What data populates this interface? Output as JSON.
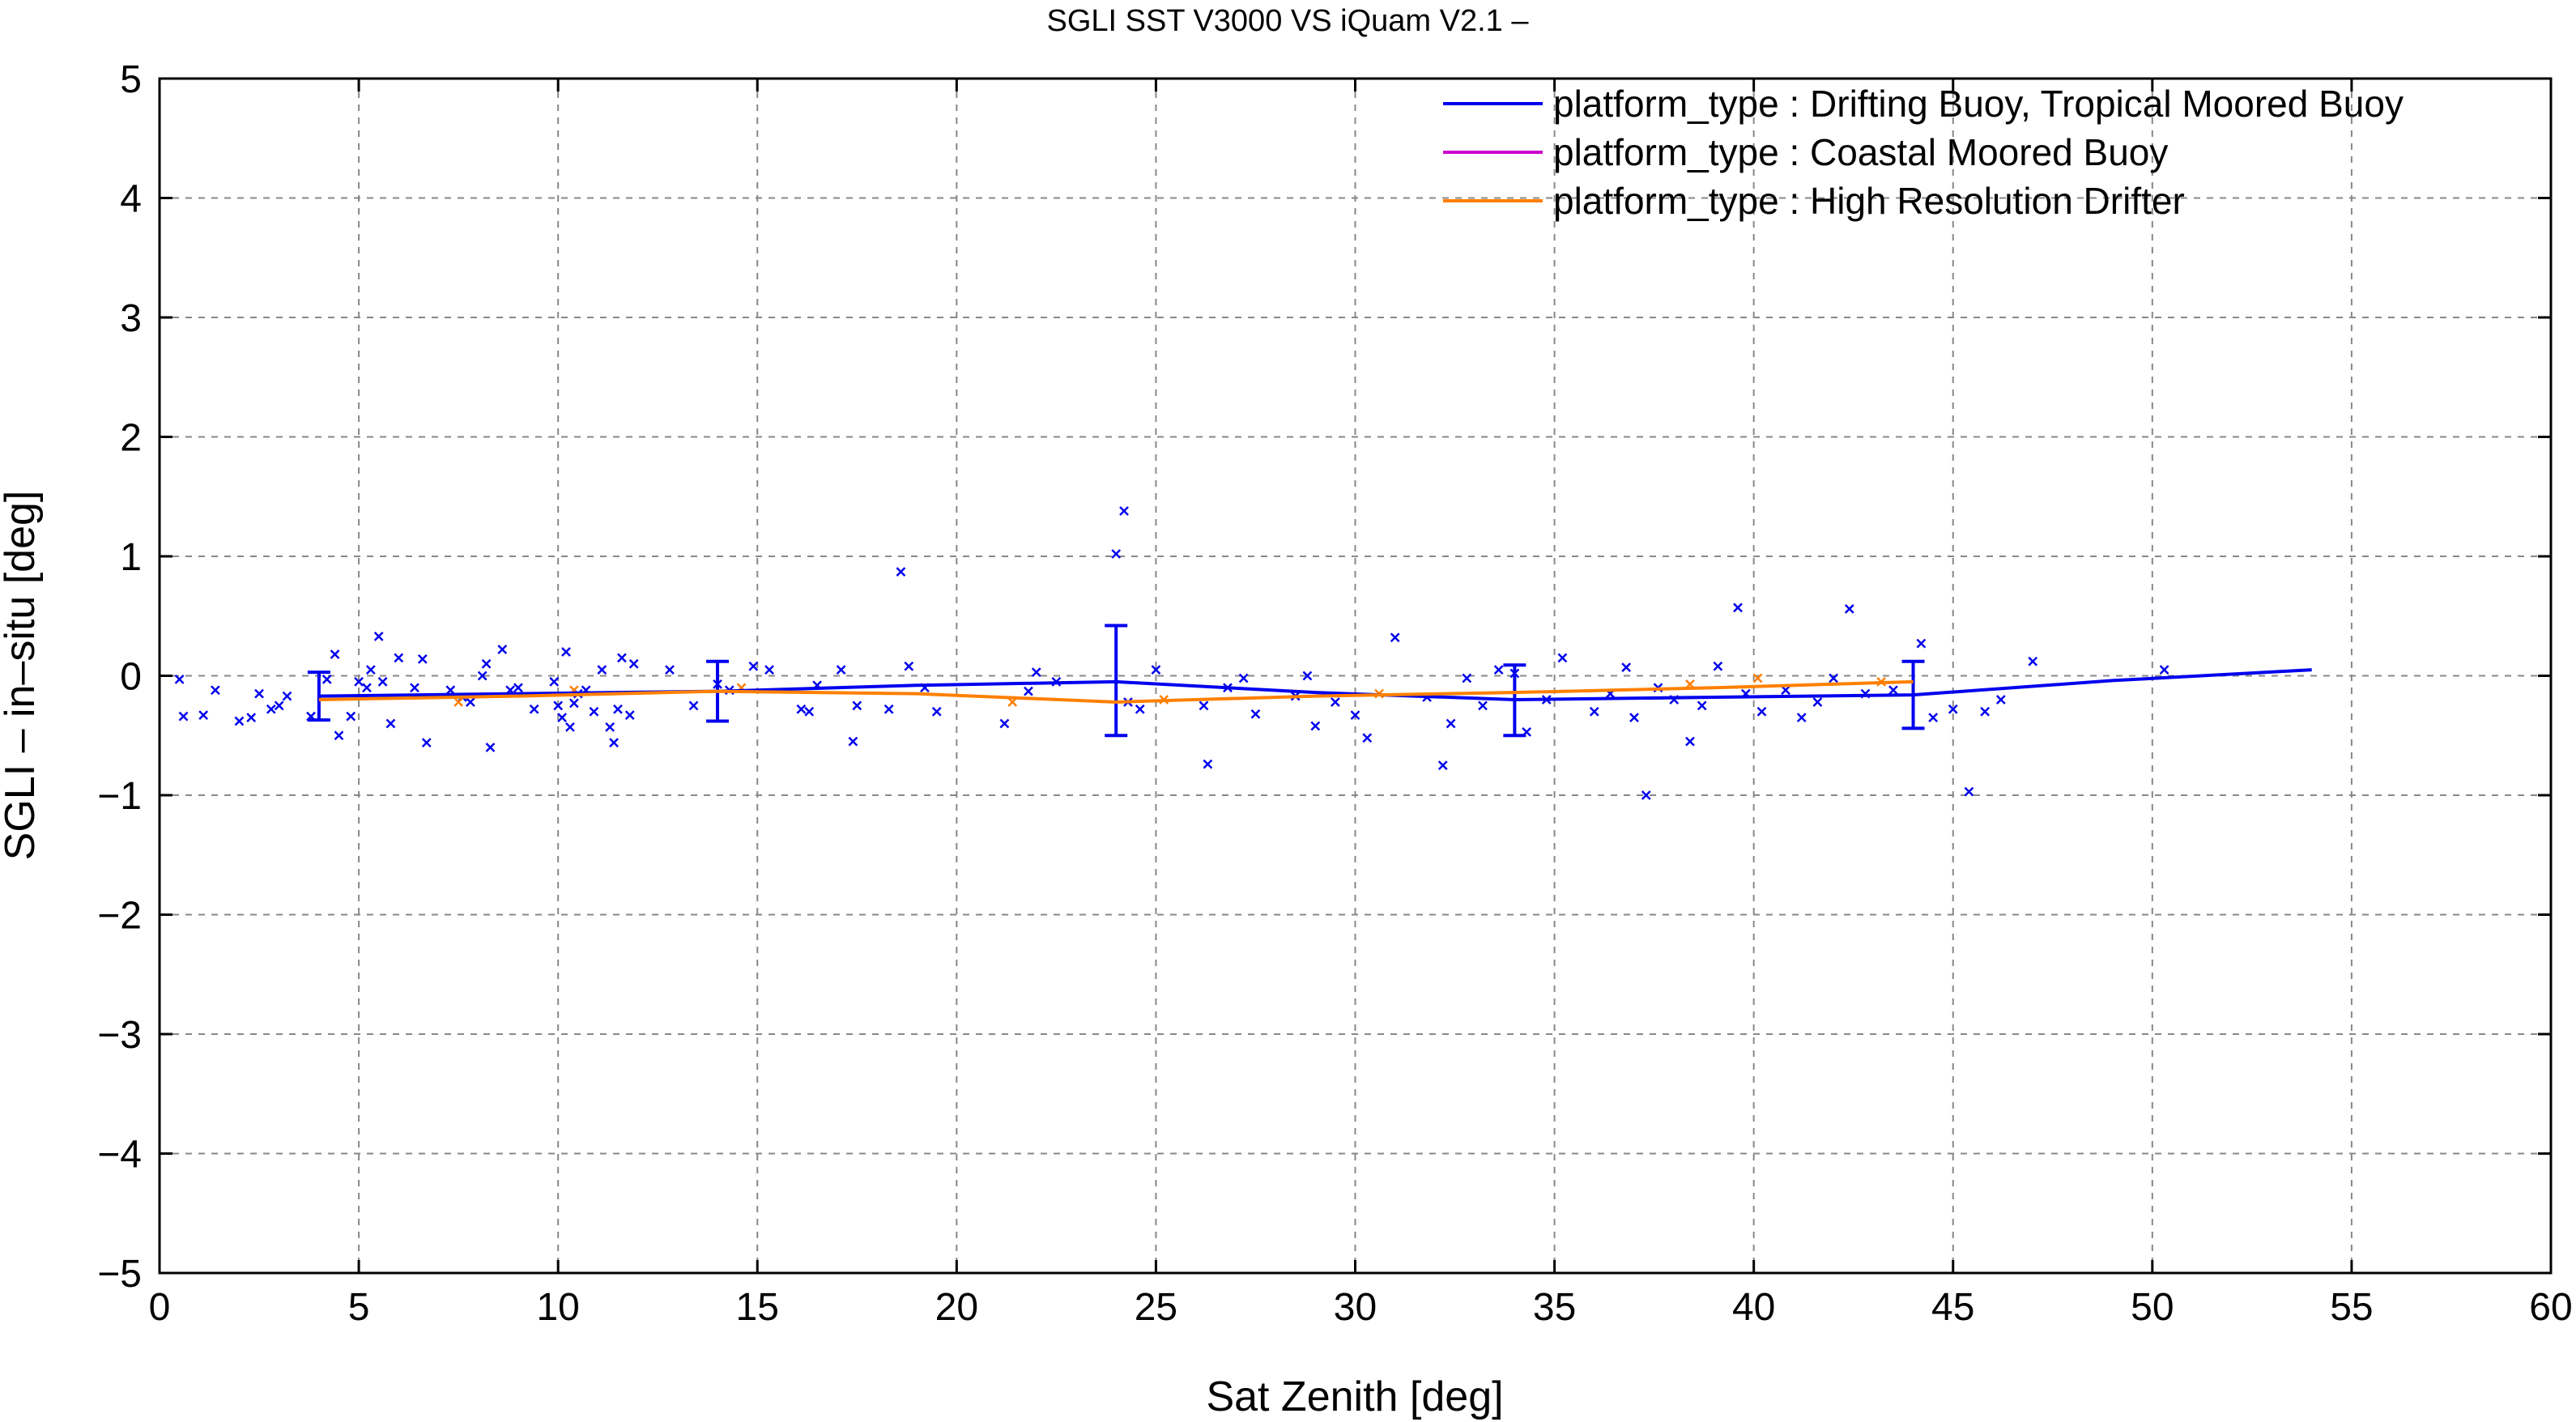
{
  "chart_data": {
    "type": "line",
    "title": "SGLI SST V3000 VS iQuam V2.1  –",
    "xlabel": "Sat Zenith [deg]",
    "ylabel": "SGLI – in–situ [deg]",
    "xlim": [
      0,
      60
    ],
    "ylim": [
      -5,
      5
    ],
    "xticks": [
      0,
      5,
      10,
      15,
      20,
      25,
      30,
      35,
      40,
      45,
      50,
      55,
      60
    ],
    "yticks": [
      -5,
      -4,
      -3,
      -2,
      -1,
      0,
      1,
      2,
      3,
      4,
      5
    ],
    "ytick_labels": [
      "−5",
      "−4",
      "−3",
      "−2",
      "−1",
      "0",
      "1",
      "2",
      "3",
      "4",
      "5"
    ],
    "grid": true,
    "legend_position": "top-right",
    "series": [
      {
        "name": "platform_type : Drifting Buoy, Tropical Moored Buoy",
        "color": "#0000ee",
        "x": [
          4,
          9,
          14,
          19,
          24,
          29,
          34,
          39,
          44,
          49,
          54
        ],
        "y": [
          -0.17,
          -0.15,
          -0.13,
          -0.08,
          -0.05,
          -0.14,
          -0.2,
          -0.18,
          -0.16,
          -0.04,
          0.05
        ],
        "error_bars": [
          {
            "x": 4,
            "low": -0.37,
            "high": 0.03
          },
          {
            "x": 14,
            "low": -0.38,
            "high": 0.12
          },
          {
            "x": 24,
            "low": -0.5,
            "high": 0.42
          },
          {
            "x": 34,
            "low": -0.5,
            "high": 0.09
          },
          {
            "x": 44,
            "low": -0.44,
            "high": 0.12
          }
        ],
        "scatter": [
          [
            0.5,
            -0.03
          ],
          [
            0.6,
            -0.34
          ],
          [
            1.1,
            -0.33
          ],
          [
            1.4,
            -0.12
          ],
          [
            2.0,
            -0.38
          ],
          [
            2.3,
            -0.35
          ],
          [
            2.5,
            -0.15
          ],
          [
            2.8,
            -0.28
          ],
          [
            3.0,
            -0.25
          ],
          [
            3.2,
            -0.17
          ],
          [
            3.8,
            -0.34
          ],
          [
            4.2,
            -0.03
          ],
          [
            4.4,
            0.18
          ],
          [
            4.5,
            -0.5
          ],
          [
            4.8,
            -0.34
          ],
          [
            5.0,
            -0.05
          ],
          [
            5.2,
            -0.1
          ],
          [
            5.3,
            0.05
          ],
          [
            5.5,
            0.33
          ],
          [
            5.6,
            -0.05
          ],
          [
            5.8,
            -0.4
          ],
          [
            6.0,
            0.15
          ],
          [
            6.4,
            -0.1
          ],
          [
            6.6,
            0.14
          ],
          [
            6.7,
            -0.56
          ],
          [
            7.3,
            -0.12
          ],
          [
            7.6,
            -0.18
          ],
          [
            7.8,
            -0.22
          ],
          [
            8.1,
            0.0
          ],
          [
            8.2,
            0.1
          ],
          [
            8.3,
            -0.6
          ],
          [
            8.6,
            0.22
          ],
          [
            8.8,
            -0.12
          ],
          [
            9.0,
            -0.1
          ],
          [
            9.4,
            -0.28
          ],
          [
            9.9,
            -0.05
          ],
          [
            10.0,
            -0.25
          ],
          [
            10.1,
            -0.35
          ],
          [
            10.2,
            0.2
          ],
          [
            10.3,
            -0.43
          ],
          [
            10.4,
            -0.23
          ],
          [
            10.5,
            -0.15
          ],
          [
            10.7,
            -0.12
          ],
          [
            10.9,
            -0.3
          ],
          [
            11.1,
            0.05
          ],
          [
            11.3,
            -0.43
          ],
          [
            11.4,
            -0.56
          ],
          [
            11.5,
            -0.28
          ],
          [
            11.6,
            0.15
          ],
          [
            11.8,
            -0.33
          ],
          [
            11.9,
            0.1
          ],
          [
            12.8,
            0.05
          ],
          [
            13.4,
            -0.25
          ],
          [
            14.0,
            -0.07
          ],
          [
            14.3,
            -0.12
          ],
          [
            14.9,
            0.08
          ],
          [
            15.3,
            0.05
          ],
          [
            16.1,
            -0.28
          ],
          [
            16.3,
            -0.3
          ],
          [
            16.5,
            -0.08
          ],
          [
            17.1,
            0.05
          ],
          [
            17.4,
            -0.55
          ],
          [
            17.5,
            -0.25
          ],
          [
            18.3,
            -0.28
          ],
          [
            18.6,
            0.87
          ],
          [
            18.8,
            0.08
          ],
          [
            19.2,
            -0.1
          ],
          [
            19.5,
            -0.3
          ],
          [
            21.2,
            -0.4
          ],
          [
            21.8,
            -0.13
          ],
          [
            22.0,
            0.03
          ],
          [
            22.5,
            -0.05
          ],
          [
            24.0,
            1.02
          ],
          [
            24.2,
            1.38
          ],
          [
            24.3,
            -0.22
          ],
          [
            24.6,
            -0.28
          ],
          [
            25.0,
            0.05
          ],
          [
            26.2,
            -0.25
          ],
          [
            26.3,
            -0.74
          ],
          [
            26.8,
            -0.1
          ],
          [
            27.2,
            -0.02
          ],
          [
            27.5,
            -0.32
          ],
          [
            28.5,
            -0.17
          ],
          [
            28.8,
            0.0
          ],
          [
            29.0,
            -0.42
          ],
          [
            29.5,
            -0.22
          ],
          [
            30.0,
            -0.33
          ],
          [
            30.3,
            -0.52
          ],
          [
            31.0,
            0.32
          ],
          [
            31.8,
            -0.18
          ],
          [
            32.2,
            -0.75
          ],
          [
            32.4,
            -0.4
          ],
          [
            32.8,
            -0.02
          ],
          [
            33.2,
            -0.25
          ],
          [
            33.6,
            0.05
          ],
          [
            34.0,
            0.02
          ],
          [
            34.3,
            -0.47
          ],
          [
            34.8,
            -0.2
          ],
          [
            35.2,
            0.15
          ],
          [
            36.0,
            -0.3
          ],
          [
            36.4,
            -0.15
          ],
          [
            36.8,
            0.07
          ],
          [
            37.0,
            -0.35
          ],
          [
            37.3,
            -1.0
          ],
          [
            37.6,
            -0.1
          ],
          [
            38.0,
            -0.2
          ],
          [
            38.4,
            -0.55
          ],
          [
            38.7,
            -0.25
          ],
          [
            39.1,
            0.08
          ],
          [
            39.6,
            0.57
          ],
          [
            39.8,
            -0.15
          ],
          [
            40.2,
            -0.3
          ],
          [
            40.8,
            -0.12
          ],
          [
            41.2,
            -0.35
          ],
          [
            41.6,
            -0.22
          ],
          [
            42.0,
            -0.02
          ],
          [
            42.4,
            0.56
          ],
          [
            42.8,
            -0.15
          ],
          [
            43.5,
            -0.12
          ],
          [
            44.2,
            0.27
          ],
          [
            44.5,
            -0.35
          ],
          [
            45.0,
            -0.28
          ],
          [
            45.4,
            -0.97
          ],
          [
            45.8,
            -0.3
          ],
          [
            46.2,
            -0.2
          ],
          [
            47.0,
            0.12
          ],
          [
            50.3,
            0.05
          ]
        ]
      },
      {
        "name": "platform_type : Coastal Moored Buoy",
        "color": "#cc00cc",
        "x": [],
        "y": []
      },
      {
        "name": "platform_type : High Resolution Drifter",
        "color": "#ff8000",
        "x": [
          4,
          9,
          14,
          19,
          24,
          29,
          34,
          39,
          44
        ],
        "y": [
          -0.2,
          -0.17,
          -0.13,
          -0.15,
          -0.22,
          -0.17,
          -0.14,
          -0.1,
          -0.05
        ],
        "scatter": [
          [
            7.5,
            -0.22
          ],
          [
            10.4,
            -0.12
          ],
          [
            14.6,
            -0.1
          ],
          [
            21.4,
            -0.22
          ],
          [
            25.2,
            -0.2
          ],
          [
            30.6,
            -0.15
          ],
          [
            38.4,
            -0.07
          ],
          [
            40.1,
            -0.02
          ],
          [
            43.2,
            -0.05
          ]
        ]
      }
    ]
  }
}
